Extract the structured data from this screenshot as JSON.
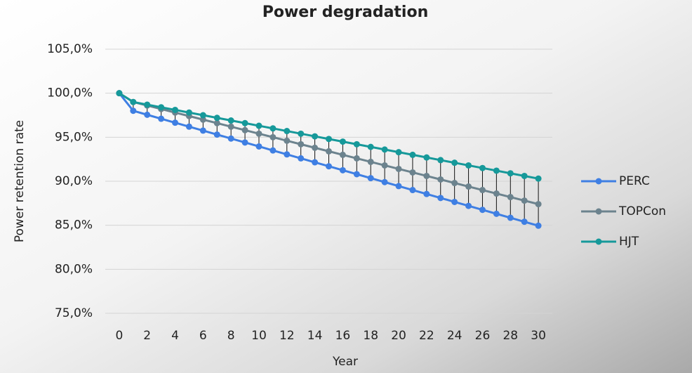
{
  "chart_data": {
    "type": "line",
    "title": "Power degradation",
    "x_label": "Year",
    "y_label": "Power retention rate",
    "x": [
      0,
      1,
      2,
      3,
      4,
      5,
      6,
      7,
      8,
      9,
      10,
      11,
      12,
      13,
      14,
      15,
      16,
      17,
      18,
      19,
      20,
      21,
      22,
      23,
      24,
      25,
      26,
      27,
      28,
      29,
      30
    ],
    "xlim": [
      -1,
      31
    ],
    "xticks": [
      0,
      2,
      4,
      6,
      8,
      10,
      12,
      14,
      16,
      18,
      20,
      22,
      24,
      26,
      28,
      30
    ],
    "ylim": [
      75,
      105
    ],
    "yticks": [
      {
        "value": 75,
        "label": "75,0%"
      },
      {
        "value": 80,
        "label": "80,0%"
      },
      {
        "value": 85,
        "label": "85,0%"
      },
      {
        "value": 90,
        "label": "90,0%"
      },
      {
        "value": 95,
        "label": "95,0%"
      },
      {
        "value": 100,
        "label": "100,0%"
      },
      {
        "value": 105,
        "label": "105,0%"
      }
    ],
    "grid": true,
    "high_low_lines": true,
    "legend": "right",
    "series": [
      {
        "name": "PERC",
        "color": "#3f7fe3",
        "values": [
          100,
          98,
          97.55,
          97.1,
          96.65,
          96.2,
          95.75,
          95.3,
          94.85,
          94.4,
          93.95,
          93.5,
          93.05,
          92.6,
          92.15,
          91.7,
          91.25,
          90.8,
          90.35,
          89.9,
          89.45,
          89,
          88.55,
          88.1,
          87.65,
          87.2,
          86.75,
          86.3,
          85.85,
          85.4,
          84.95
        ]
      },
      {
        "name": "TOPCon",
        "color": "#6c838e",
        "values": [
          100,
          99,
          98.6,
          98.2,
          97.8,
          97.4,
          97,
          96.6,
          96.2,
          95.8,
          95.4,
          95,
          94.6,
          94.2,
          93.8,
          93.4,
          93,
          92.6,
          92.2,
          91.8,
          91.4,
          91,
          90.6,
          90.2,
          89.8,
          89.4,
          89,
          88.6,
          88.2,
          87.8,
          87.4
        ]
      },
      {
        "name": "HJT",
        "color": "#16999a",
        "values": [
          100,
          99,
          98.7,
          98.4,
          98.1,
          97.8,
          97.5,
          97.2,
          96.9,
          96.6,
          96.3,
          96,
          95.7,
          95.4,
          95.1,
          94.8,
          94.5,
          94.2,
          93.9,
          93.6,
          93.3,
          93,
          92.7,
          92.4,
          92.1,
          91.8,
          91.5,
          91.2,
          90.9,
          90.6,
          90.3
        ]
      }
    ]
  }
}
